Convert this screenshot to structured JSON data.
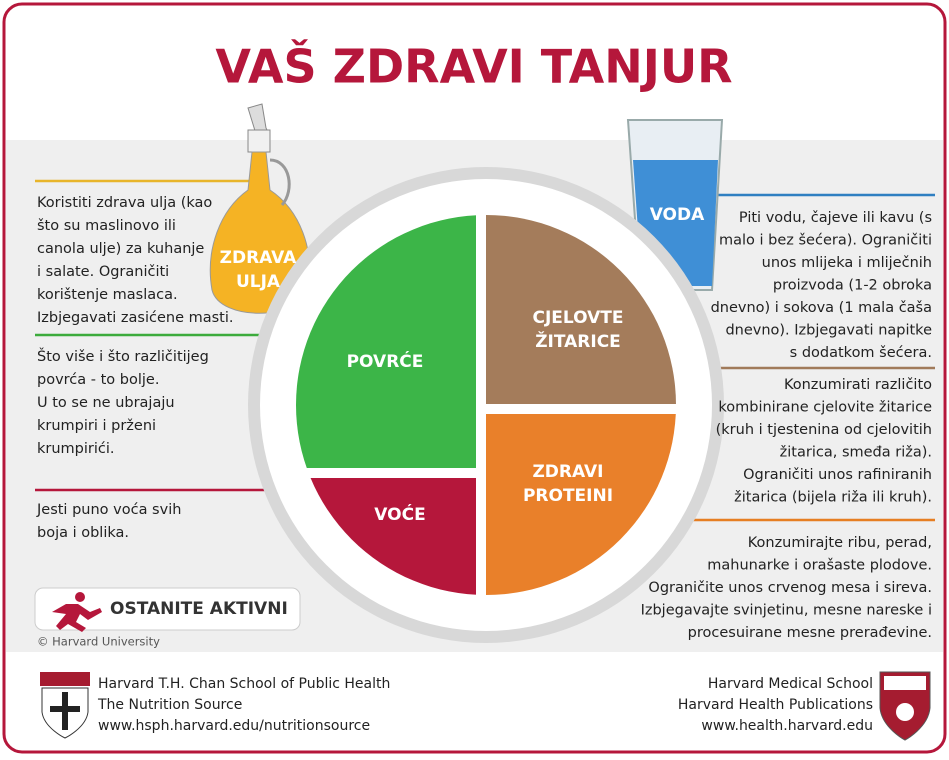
{
  "title": "VAŠ ZDRAVI TANJUR",
  "plate": {
    "vegetables": {
      "label": [
        "POVRĆE"
      ]
    },
    "fruit": {
      "label": [
        "VOĆE"
      ]
    },
    "whole_grains": {
      "label": [
        "CJELOVTE",
        "ŽITARICE"
      ]
    },
    "protein": {
      "label": [
        "ZDRAVI",
        "PROTEINI"
      ]
    }
  },
  "oil": {
    "label": [
      "ZDRAVA",
      "ULJA"
    ],
    "text": [
      "Koristiti zdrava ulja (kao",
      "što su maslinovo ili",
      "canola ulje) za kuhanje",
      "i salate. Ograničiti",
      "korištenje maslaca.",
      "Izbjegavati zasićene masti."
    ]
  },
  "vegetables_text": [
    "Što više i što različitijeg",
    "povrća - to bolje.",
    "U to se ne ubrajaju",
    "krumpiri i prženi",
    "krumpirići."
  ],
  "fruit_text": [
    "Jesti puno voća svih",
    "boja i oblika."
  ],
  "water": {
    "label": [
      "VODA"
    ],
    "text": [
      "Piti vodu, čajeve ili kavu (s",
      "malo i bez šećera). Ograničiti",
      "unos mlijeka i mliječnih",
      "proizvoda (1-2 obroka",
      "dnevno) i sokova (1 mala čaša",
      "dnevno). Izbjegavati napitke",
      "s dodatkom šećera."
    ]
  },
  "grains_text": [
    "Konzumirati različito",
    "kombinirane cjelovite žitarice",
    "(kruh i tjestenina od cjelovitih",
    "žitarica, smeđa riža).",
    "Ograničiti unos rafiniranih",
    "žitarica (bijela riža ili kruh)."
  ],
  "protein_text": [
    "Konzumirajte ribu, perad,",
    "mahunarke i orašaste plodove.",
    "Ograničite unos crvenog mesa i sireva.",
    "Izbjegavajte svinjetinu, mesne nareske i",
    "procesuirane mesne prerađevine."
  ],
  "active": "OSTANITE AKTIVNI",
  "copyright": "© Harvard University",
  "footer_left": [
    "Harvard T.H. Chan School of Public Health",
    "The Nutrition Source",
    "www.hsph.harvard.edu/nutritionsource"
  ],
  "footer_right": [
    "Harvard Medical School",
    "Harvard Health Publications",
    "www.health.harvard.edu"
  ]
}
